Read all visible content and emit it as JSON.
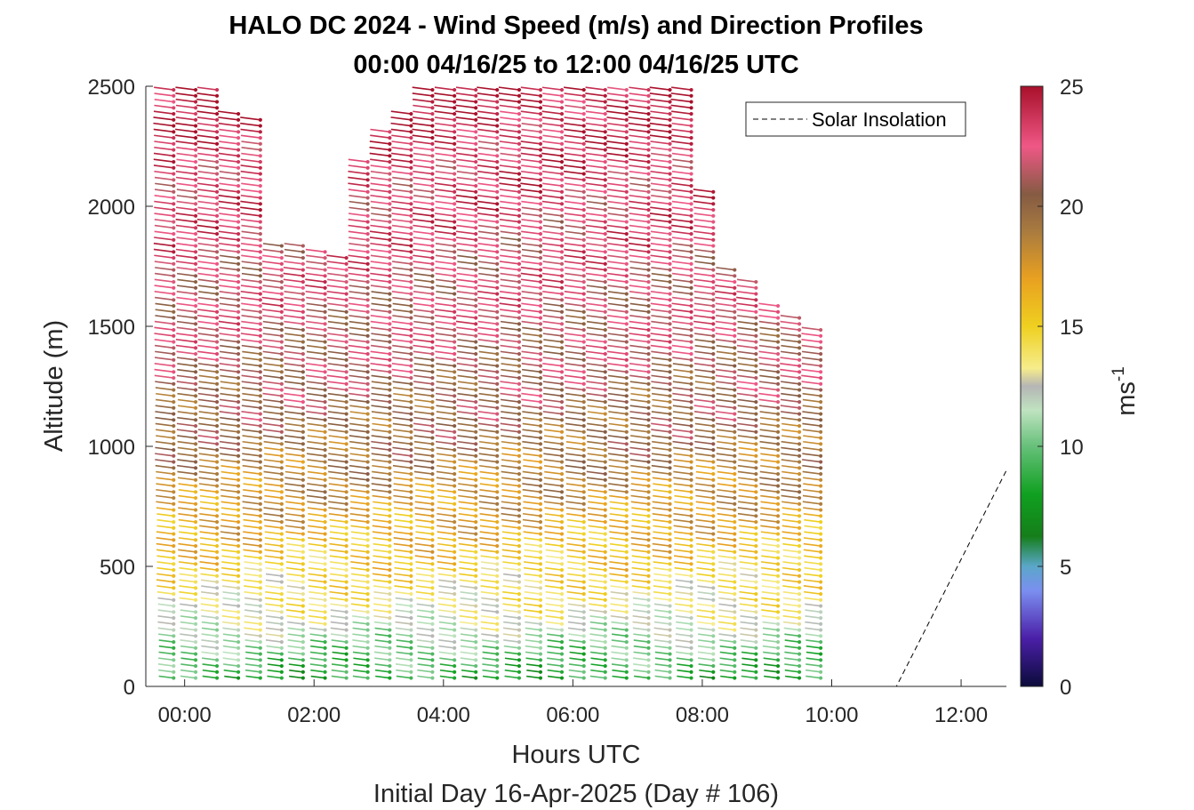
{
  "chart_data": {
    "type": "scatter",
    "title_line1": "HALO DC 2024 - Wind Speed (m/s) and Direction Profiles",
    "title_line2": "00:00 04/16/25 to 12:00 04/16/25  UTC",
    "xlabel": "Hours UTC",
    "xlabel2": "Initial Day 16-Apr-2025 (Day # 106)",
    "ylabel": "Altitude (m)",
    "xlim": [
      -0.6,
      12.7
    ],
    "ylim": [
      0,
      2500
    ],
    "xticks": [
      0,
      2,
      4,
      6,
      8,
      10,
      12
    ],
    "xtick_labels": [
      "00:00",
      "02:00",
      "04:00",
      "06:00",
      "08:00",
      "10:00",
      "12:00"
    ],
    "yticks": [
      0,
      500,
      1000,
      1500,
      2000,
      2500
    ],
    "ytick_labels": [
      "0",
      "500",
      "1000",
      "1500",
      "2000",
      "2500"
    ],
    "colorbar": {
      "label": "ms",
      "label_exponent": "-1",
      "range": [
        0,
        25
      ],
      "ticks": [
        0,
        5,
        10,
        15,
        20,
        25
      ],
      "tick_labels": [
        "0",
        "5",
        "10",
        "15",
        "20",
        "25"
      ]
    },
    "legend": {
      "position": "top-right",
      "entries": [
        "Solar Insolation"
      ]
    },
    "wind_profiles": {
      "times": [
        -0.17,
        0.17,
        0.5,
        0.83,
        1.17,
        1.5,
        1.83,
        2.17,
        2.5,
        2.83,
        3.17,
        3.5,
        3.83,
        4.17,
        4.5,
        4.83,
        5.17,
        5.5,
        5.83,
        6.17,
        6.5,
        6.83,
        7.17,
        7.5,
        7.83,
        8.17,
        8.5,
        8.83,
        9.17,
        9.5,
        9.83
      ],
      "top_altitude_m": [
        2500,
        2500,
        2500,
        2400,
        2370,
        1850,
        1840,
        1820,
        1800,
        2200,
        2310,
        2400,
        2500,
        2500,
        2500,
        2500,
        2500,
        2500,
        2500,
        2500,
        2500,
        2500,
        2500,
        2500,
        2500,
        2060,
        1750,
        1700,
        1600,
        1550,
        1500
      ],
      "altitude_step_m": 25,
      "lowest_altitude_m": 35,
      "speed_profile": {
        "altitudes": [
          0,
          150,
          300,
          500,
          700,
          1000,
          1400,
          1800,
          2200,
          2500
        ],
        "speed_ms": [
          8,
          10,
          13,
          15,
          17,
          19.5,
          21.5,
          22.5,
          23.5,
          24.5
        ]
      },
      "direction_from_deg": 290
    },
    "solar_insolation": {
      "x": [
        -0.6,
        11.0,
        12.7
      ],
      "y": [
        0,
        0,
        900
      ]
    }
  }
}
